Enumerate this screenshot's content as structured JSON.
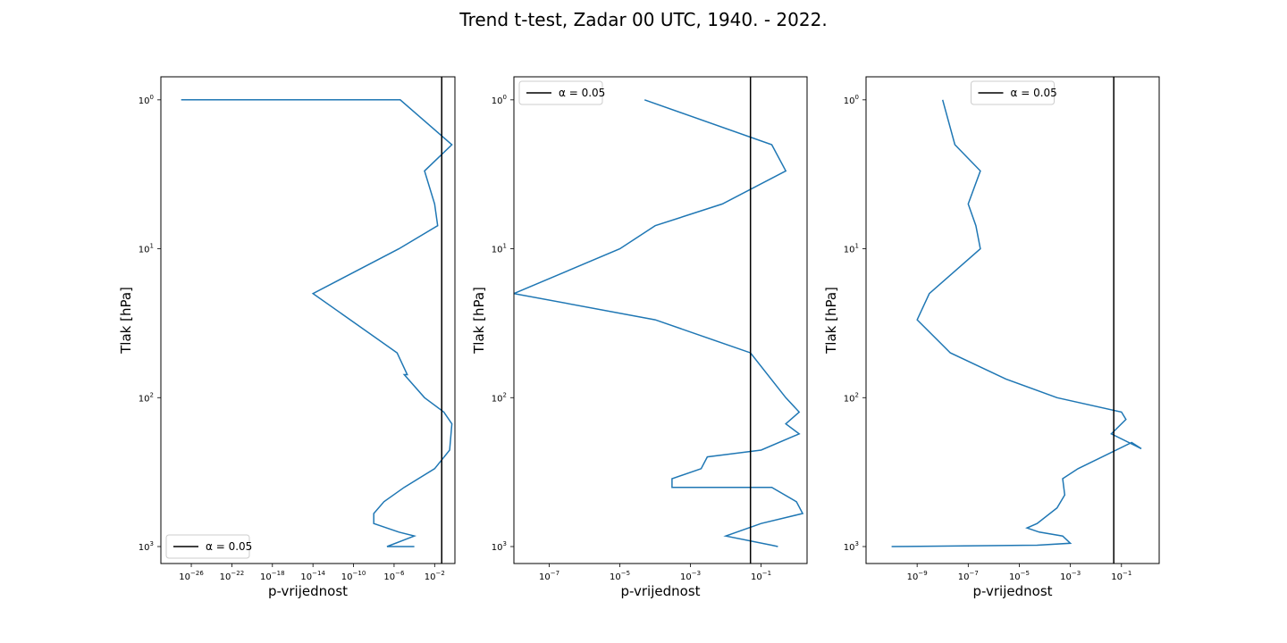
{
  "suptitle": "Trend t-test, Zadar 00 UTC, 1940. - 2022.",
  "colors": {
    "series": "#1f77b4",
    "alpha_line": "#000000",
    "frame": "#000000"
  },
  "chart_data": [
    {
      "type": "line",
      "xlabel": "p-vrijednost",
      "ylabel": "Tlak [hPa]",
      "xscale": "log",
      "yscale": "log",
      "y_inverted": true,
      "xlim": [
        1e-29,
        1
      ],
      "ylim": [
        1300,
        0.7
      ],
      "xticks": [
        {
          "v": 1e-26,
          "base": "10",
          "exp": "−26"
        },
        {
          "v": 1e-22,
          "base": "10",
          "exp": "−22"
        },
        {
          "v": 1e-18,
          "base": "10",
          "exp": "−18"
        },
        {
          "v": 1e-14,
          "base": "10",
          "exp": "−14"
        },
        {
          "v": 1e-10,
          "base": "10",
          "exp": "−10"
        },
        {
          "v": 1e-06,
          "base": "10",
          "exp": "−6"
        },
        {
          "v": 0.01,
          "base": "10",
          "exp": "−2"
        }
      ],
      "yticks": [
        {
          "v": 1,
          "base": "10",
          "exp": "0"
        },
        {
          "v": 10,
          "base": "10",
          "exp": "1"
        },
        {
          "v": 100,
          "base": "10",
          "exp": "2"
        },
        {
          "v": 1000,
          "base": "10",
          "exp": "3"
        }
      ],
      "alpha": 0.05,
      "legend": {
        "label": "α = 0.05",
        "loc": "lower left"
      },
      "series": {
        "p": [
          0.0001,
          2e-07,
          0.0001,
          3e-06,
          1e-08,
          1e-08,
          1e-07,
          1e-05,
          0.01,
          0.3,
          0.5,
          0.08,
          0.001,
          1e-05,
          2e-05,
          2e-06,
          1e-14,
          3e-06,
          0.02,
          0.01,
          0.001,
          0.5,
          4e-06,
          1e-27
        ],
        "pressure": [
          1000,
          1000,
          850,
          800,
          700,
          600,
          500,
          400,
          300,
          225,
          150,
          125,
          100,
          70,
          70,
          50,
          20,
          10,
          7,
          5,
          3,
          2,
          1,
          1
        ]
      }
    },
    {
      "type": "line",
      "xlabel": "p-vrijednost",
      "ylabel": "Tlak [hPa]",
      "xscale": "log",
      "yscale": "log",
      "y_inverted": true,
      "xlim": [
        1e-08,
        2
      ],
      "ylim": [
        1300,
        0.7
      ],
      "xticks": [
        {
          "v": 1e-07,
          "base": "10",
          "exp": "−7"
        },
        {
          "v": 1e-05,
          "base": "10",
          "exp": "−5"
        },
        {
          "v": 0.001,
          "base": "10",
          "exp": "−3"
        },
        {
          "v": 0.1,
          "base": "10",
          "exp": "−1"
        }
      ],
      "yticks": [
        {
          "v": 1,
          "base": "10",
          "exp": "0"
        },
        {
          "v": 10,
          "base": "10",
          "exp": "1"
        },
        {
          "v": 100,
          "base": "10",
          "exp": "2"
        },
        {
          "v": 1000,
          "base": "10",
          "exp": "3"
        }
      ],
      "alpha": 0.05,
      "legend": {
        "label": "α = 0.05",
        "loc": "upper left"
      },
      "series": {
        "p": [
          0.3,
          0.2,
          0.01,
          0.1,
          1.5,
          1.0,
          0.2,
          0.0003,
          0.0003,
          0.002,
          0.003,
          0.1,
          1.2,
          0.5,
          1.2,
          0.5,
          0.05,
          0.0001,
          1e-08,
          1e-05,
          0.0001,
          0.008,
          0.5,
          0.2,
          5e-05
        ],
        "pressure": [
          1000,
          980,
          850,
          700,
          600,
          500,
          400,
          400,
          350,
          300,
          250,
          225,
          175,
          150,
          125,
          100,
          50,
          30,
          20,
          10,
          7,
          5,
          3,
          2,
          1
        ]
      }
    },
    {
      "type": "line",
      "xlabel": "p-vrijednost",
      "ylabel": "Tlak [hPa]",
      "xscale": "log",
      "yscale": "log",
      "y_inverted": true,
      "xlim": [
        1e-11,
        3
      ],
      "ylim": [
        1300,
        0.7
      ],
      "xticks": [
        {
          "v": 1e-09,
          "base": "10",
          "exp": "−9"
        },
        {
          "v": 1e-07,
          "base": "10",
          "exp": "−7"
        },
        {
          "v": 1e-05,
          "base": "10",
          "exp": "−5"
        },
        {
          "v": 0.001,
          "base": "10",
          "exp": "−3"
        },
        {
          "v": 0.1,
          "base": "10",
          "exp": "−1"
        }
      ],
      "yticks": [
        {
          "v": 1,
          "base": "10",
          "exp": "0"
        },
        {
          "v": 10,
          "base": "10",
          "exp": "1"
        },
        {
          "v": 100,
          "base": "10",
          "exp": "2"
        },
        {
          "v": 1000,
          "base": "10",
          "exp": "3"
        }
      ],
      "alpha": 0.05,
      "legend": {
        "label": "α = 0.05",
        "loc": "upper center"
      },
      "series": {
        "p": [
          1e-10,
          5e-05,
          0.001,
          0.0005,
          6e-05,
          2e-05,
          5e-05,
          0.0003,
          0.0006,
          0.0005,
          0.002,
          0.25,
          0.6,
          0.04,
          0.15,
          0.1,
          0.0003,
          3e-06,
          2e-08,
          1e-09,
          3e-09,
          3e-07,
          2e-07,
          1e-07,
          3e-07,
          3e-08,
          1e-08
        ],
        "pressure": [
          1000,
          980,
          950,
          850,
          800,
          750,
          700,
          550,
          450,
          350,
          300,
          200,
          220,
          175,
          140,
          125,
          100,
          75,
          50,
          30,
          20,
          10,
          7,
          5,
          3,
          2,
          1
        ]
      }
    }
  ]
}
